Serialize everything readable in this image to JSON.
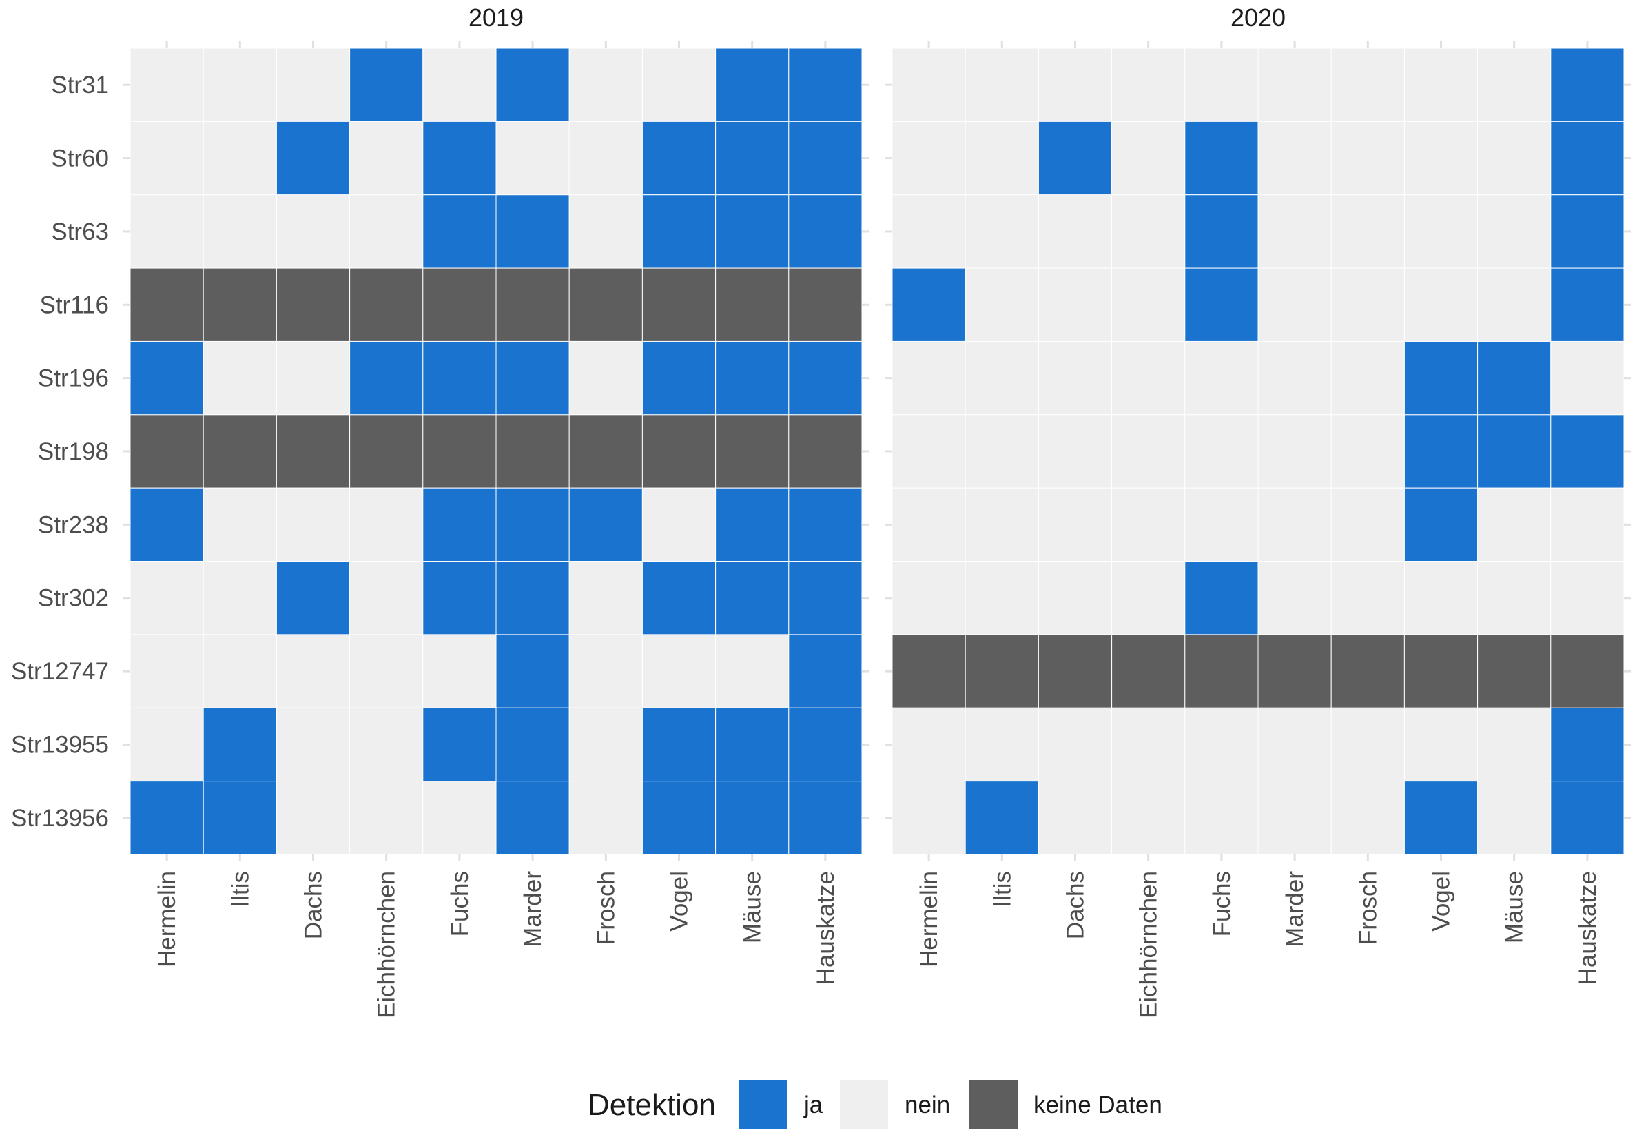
{
  "chart_data": {
    "type": "heatmap",
    "legend": {
      "title": "Detektion",
      "placement": "bottom",
      "entries": [
        {
          "key": "ja",
          "label": "ja",
          "color": "#1a74cf"
        },
        {
          "key": "nein",
          "label": "nein",
          "color": "#efefef"
        },
        {
          "key": "keine",
          "label": "keine Daten",
          "color": "#5e5e5e"
        }
      ]
    },
    "rows": [
      "Str31",
      "Str60",
      "Str63",
      "Str116",
      "Str196",
      "Str198",
      "Str238",
      "Str302",
      "Str12747",
      "Str13955",
      "Str13956"
    ],
    "columns": [
      "Hermelin",
      "Iltis",
      "Dachs",
      "Eichhörnchen",
      "Fuchs",
      "Marder",
      "Frosch",
      "Vogel",
      "Mäuse",
      "Hauskatze"
    ],
    "panels": [
      {
        "title": "2019",
        "values": [
          [
            "nein",
            "nein",
            "nein",
            "ja",
            "nein",
            "ja",
            "nein",
            "nein",
            "ja",
            "ja"
          ],
          [
            "nein",
            "nein",
            "ja",
            "nein",
            "ja",
            "nein",
            "nein",
            "ja",
            "ja",
            "ja"
          ],
          [
            "nein",
            "nein",
            "nein",
            "nein",
            "ja",
            "ja",
            "nein",
            "ja",
            "ja",
            "ja"
          ],
          [
            "keine",
            "keine",
            "keine",
            "keine",
            "keine",
            "keine",
            "keine",
            "keine",
            "keine",
            "keine"
          ],
          [
            "ja",
            "nein",
            "nein",
            "ja",
            "ja",
            "ja",
            "nein",
            "ja",
            "ja",
            "ja"
          ],
          [
            "keine",
            "keine",
            "keine",
            "keine",
            "keine",
            "keine",
            "keine",
            "keine",
            "keine",
            "keine"
          ],
          [
            "ja",
            "nein",
            "nein",
            "nein",
            "ja",
            "ja",
            "ja",
            "nein",
            "ja",
            "ja"
          ],
          [
            "nein",
            "nein",
            "ja",
            "nein",
            "ja",
            "ja",
            "nein",
            "ja",
            "ja",
            "ja"
          ],
          [
            "nein",
            "nein",
            "nein",
            "nein",
            "nein",
            "ja",
            "nein",
            "nein",
            "nein",
            "ja"
          ],
          [
            "nein",
            "ja",
            "nein",
            "nein",
            "ja",
            "ja",
            "nein",
            "ja",
            "ja",
            "ja"
          ],
          [
            "ja",
            "ja",
            "nein",
            "nein",
            "nein",
            "ja",
            "nein",
            "ja",
            "ja",
            "ja"
          ]
        ]
      },
      {
        "title": "2020",
        "values": [
          [
            "nein",
            "nein",
            "nein",
            "nein",
            "nein",
            "nein",
            "nein",
            "nein",
            "nein",
            "ja"
          ],
          [
            "nein",
            "nein",
            "ja",
            "nein",
            "ja",
            "nein",
            "nein",
            "nein",
            "nein",
            "ja"
          ],
          [
            "nein",
            "nein",
            "nein",
            "nein",
            "ja",
            "nein",
            "nein",
            "nein",
            "nein",
            "ja"
          ],
          [
            "ja",
            "nein",
            "nein",
            "nein",
            "ja",
            "nein",
            "nein",
            "nein",
            "nein",
            "ja"
          ],
          [
            "nein",
            "nein",
            "nein",
            "nein",
            "nein",
            "nein",
            "nein",
            "ja",
            "ja",
            "nein"
          ],
          [
            "nein",
            "nein",
            "nein",
            "nein",
            "nein",
            "nein",
            "nein",
            "ja",
            "ja",
            "ja"
          ],
          [
            "nein",
            "nein",
            "nein",
            "nein",
            "nein",
            "nein",
            "nein",
            "ja",
            "nein",
            "nein"
          ],
          [
            "nein",
            "nein",
            "nein",
            "nein",
            "ja",
            "nein",
            "nein",
            "nein",
            "nein",
            "nein"
          ],
          [
            "keine",
            "keine",
            "keine",
            "keine",
            "keine",
            "keine",
            "keine",
            "keine",
            "keine",
            "keine"
          ],
          [
            "nein",
            "nein",
            "nein",
            "nein",
            "nein",
            "nein",
            "nein",
            "nein",
            "nein",
            "ja"
          ],
          [
            "nein",
            "ja",
            "nein",
            "nein",
            "nein",
            "nein",
            "nein",
            "ja",
            "nein",
            "ja"
          ]
        ]
      }
    ]
  }
}
